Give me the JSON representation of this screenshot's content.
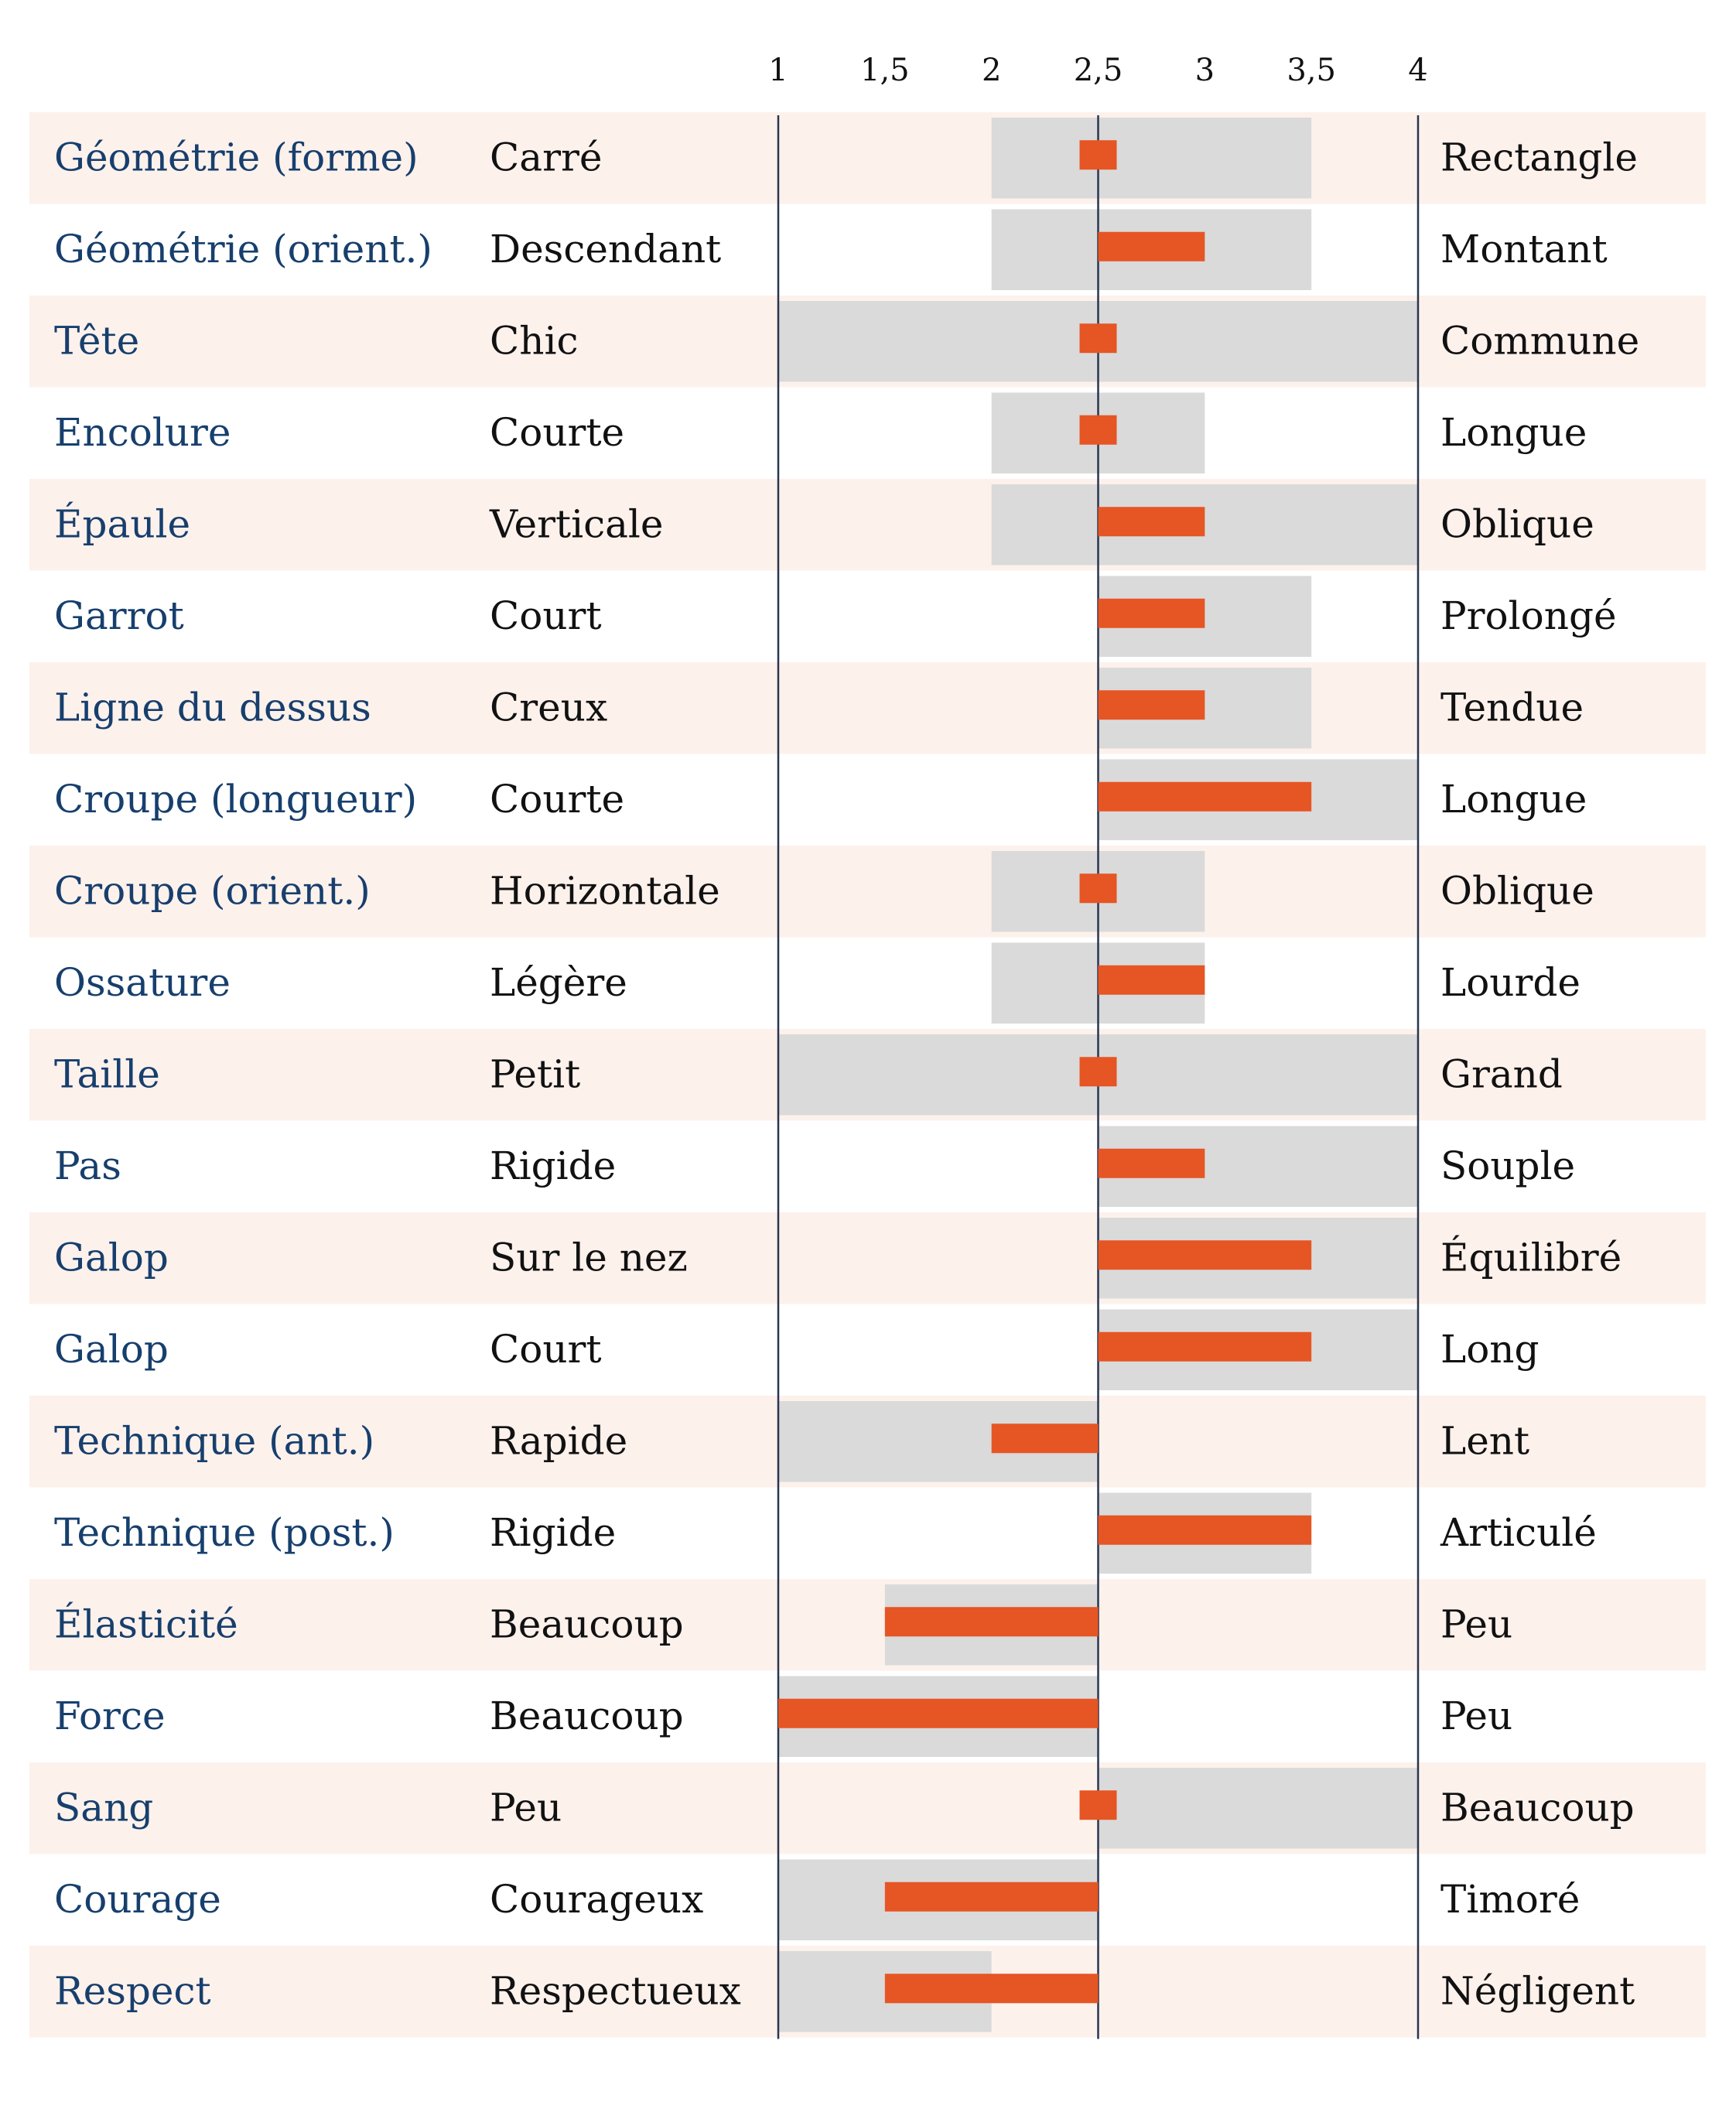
{
  "colors": {
    "row_stripe": "#fdf1ec",
    "range_band": "#dadada",
    "value_bar": "#e65524",
    "trait_text": "#173f6d",
    "pole_text": "#111111",
    "axis_line": "#2a3550"
  },
  "chart_data": {
    "type": "bar",
    "title": "",
    "xlabel": "",
    "ylabel": "",
    "xlim": [
      1,
      4
    ],
    "baseline": 2.5,
    "ticks": [
      {
        "value": 1,
        "label": "1"
      },
      {
        "value": 1.5,
        "label": "1,5"
      },
      {
        "value": 2,
        "label": "2"
      },
      {
        "value": 2.5,
        "label": "2,5"
      },
      {
        "value": 3,
        "label": "3"
      },
      {
        "value": 3.5,
        "label": "3,5"
      },
      {
        "value": 4,
        "label": "4"
      }
    ],
    "rows": [
      {
        "trait": "Géométrie (forme)",
        "left": "Carré",
        "right": "Rectangle",
        "value": 2.5,
        "range": [
          2,
          3.5
        ]
      },
      {
        "trait": "Géométrie (orient.)",
        "left": "Descendant",
        "right": "Montant",
        "value": 3,
        "range": [
          2,
          3.5
        ]
      },
      {
        "trait": "Tête",
        "left": "Chic",
        "right": "Commune",
        "value": 2.5,
        "range": [
          1,
          4
        ]
      },
      {
        "trait": "Encolure",
        "left": "Courte",
        "right": "Longue",
        "value": 2.5,
        "range": [
          2,
          3
        ]
      },
      {
        "trait": "Épaule",
        "left": "Verticale",
        "right": "Oblique",
        "value": 3,
        "range": [
          2,
          4
        ]
      },
      {
        "trait": "Garrot",
        "left": "Court",
        "right": "Prolongé",
        "value": 3,
        "range": [
          2.5,
          3.5
        ]
      },
      {
        "trait": "Ligne du dessus",
        "left": "Creux",
        "right": "Tendue",
        "value": 3,
        "range": [
          2.5,
          3.5
        ]
      },
      {
        "trait": "Croupe (longueur)",
        "left": "Courte",
        "right": "Longue",
        "value": 3.5,
        "range": [
          2.5,
          4
        ]
      },
      {
        "trait": "Croupe (orient.)",
        "left": "Horizontale",
        "right": "Oblique",
        "value": 2.5,
        "range": [
          2,
          3
        ]
      },
      {
        "trait": "Ossature",
        "left": "Légère",
        "right": "Lourde",
        "value": 3,
        "range": [
          2,
          3
        ]
      },
      {
        "trait": "Taille",
        "left": "Petit",
        "right": "Grand",
        "value": 2.5,
        "range": [
          1,
          4
        ]
      },
      {
        "trait": "Pas",
        "left": "Rigide",
        "right": "Souple",
        "value": 3,
        "range": [
          2.5,
          4
        ]
      },
      {
        "trait": "Galop",
        "left": "Sur le nez",
        "right": "Équilibré",
        "value": 3.5,
        "range": [
          2.5,
          4
        ]
      },
      {
        "trait": "Galop",
        "left": "Court",
        "right": "Long",
        "value": 3.5,
        "range": [
          2.5,
          4
        ]
      },
      {
        "trait": "Technique (ant.)",
        "left": "Rapide",
        "right": "Lent",
        "value": 2,
        "range": [
          1,
          2.5
        ]
      },
      {
        "trait": "Technique (post.)",
        "left": "Rigide",
        "right": "Articulé",
        "value": 3.5,
        "range": [
          2.5,
          3.5
        ]
      },
      {
        "trait": "Élasticité",
        "left": "Beaucoup",
        "right": "Peu",
        "value": 1.5,
        "range": [
          1.5,
          2.5
        ]
      },
      {
        "trait": "Force",
        "left": "Beaucoup",
        "right": "Peu",
        "value": 1,
        "range": [
          1,
          2.5
        ]
      },
      {
        "trait": "Sang",
        "left": "Peu",
        "right": "Beaucoup",
        "value": 2.5,
        "range": [
          2.5,
          4
        ]
      },
      {
        "trait": "Courage",
        "left": "Courageux",
        "right": "Timoré",
        "value": 1.5,
        "range": [
          1,
          2.5
        ]
      },
      {
        "trait": "Respect",
        "left": "Respectueux",
        "right": "Négligent",
        "value": 1.5,
        "range": [
          1,
          2
        ]
      }
    ]
  }
}
